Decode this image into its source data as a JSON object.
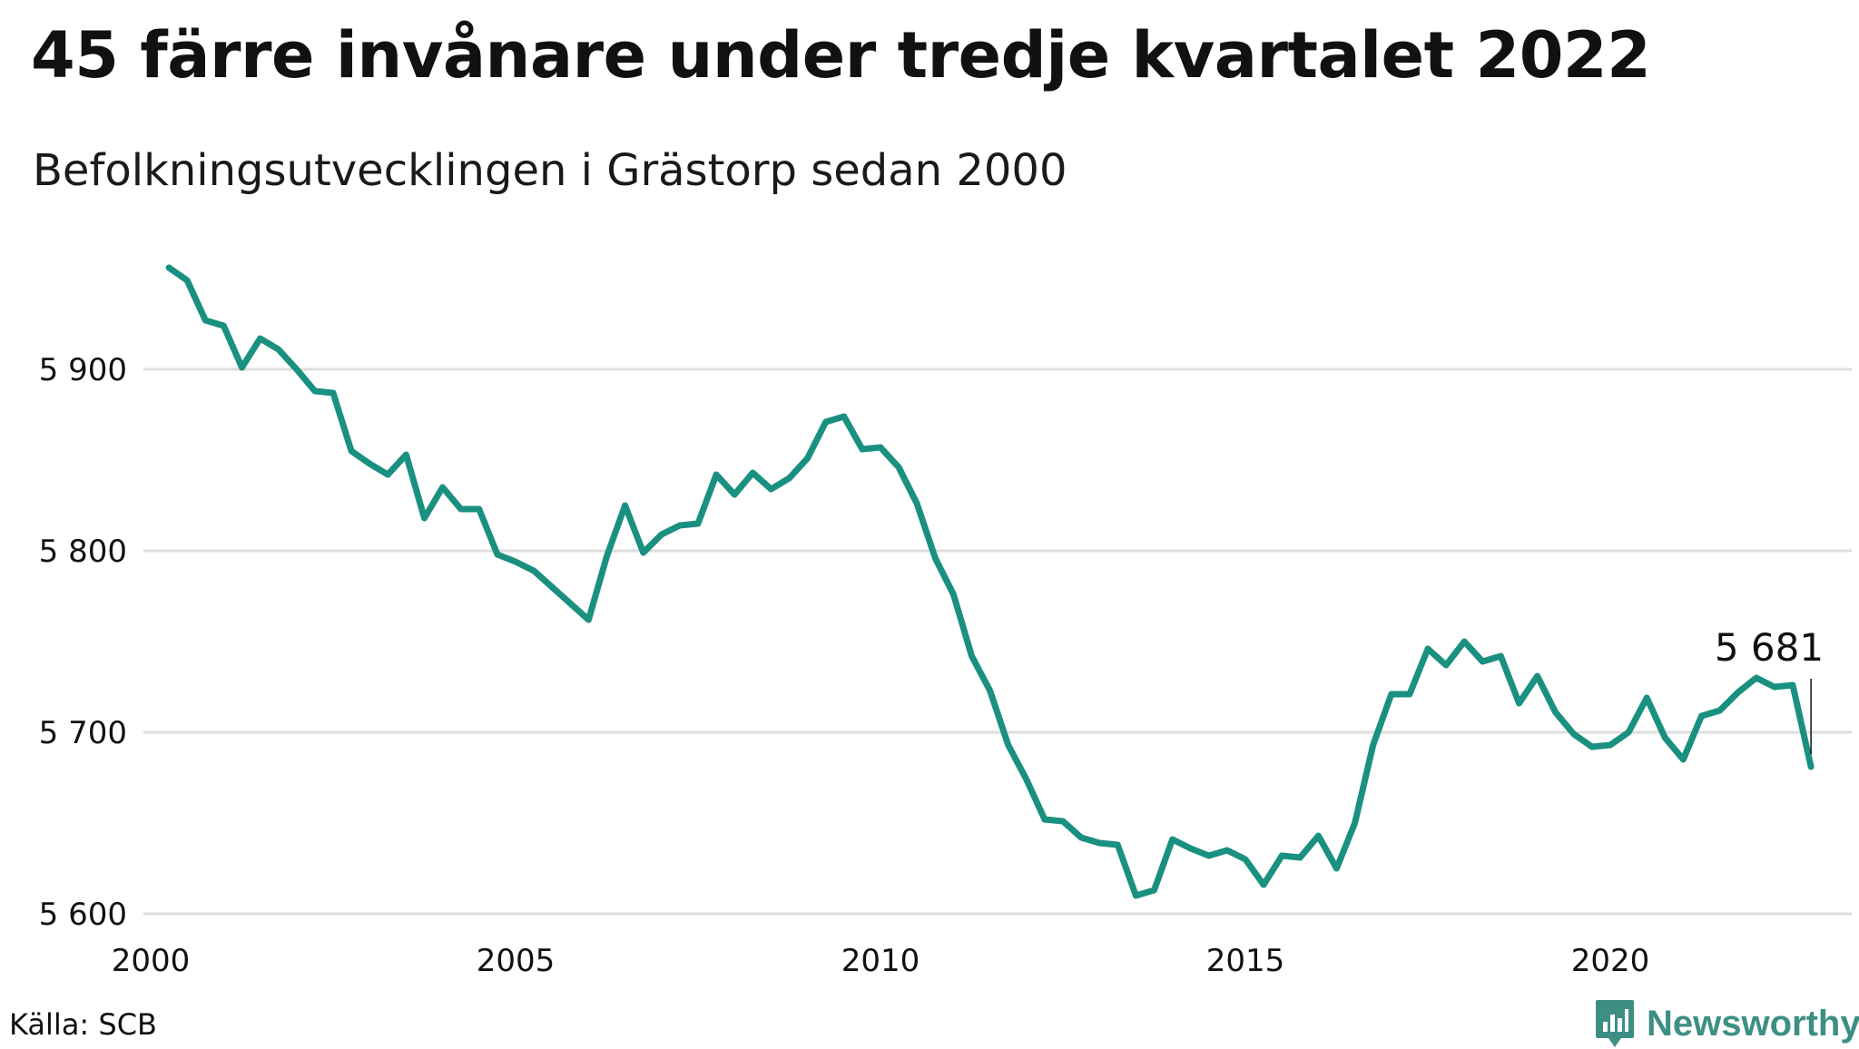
{
  "title": "45 färre invånare under tredje kvartalet 2022",
  "subtitle": "Befolkningsutvecklingen i Grästorp sedan 2000",
  "source": "Källa: SCB",
  "brand": {
    "name": "Newsworthy",
    "icon": "newsworthy-logo-icon",
    "color": "#3d8f84"
  },
  "chart_data": {
    "type": "line",
    "title": "45 färre invånare under tredje kvartalet 2022",
    "subtitle": "Befolkningsutvecklingen i Grästorp sedan 2000",
    "xlabel": "",
    "ylabel": "",
    "xlim": [
      2000,
      2023.5
    ],
    "ylim": [
      5600,
      5960
    ],
    "x_ticks": [
      {
        "value": 2000,
        "label": "2000"
      },
      {
        "value": 2005,
        "label": "2005"
      },
      {
        "value": 2010,
        "label": "2010"
      },
      {
        "value": 2015,
        "label": "2015"
      },
      {
        "value": 2020,
        "label": "2020"
      }
    ],
    "y_ticks": [
      {
        "value": 5600,
        "label": "5 600"
      },
      {
        "value": 5700,
        "label": "5 700"
      },
      {
        "value": 5800,
        "label": "5 800"
      },
      {
        "value": 5900,
        "label": "5 900"
      }
    ],
    "grid": true,
    "line_color": "#1a9080",
    "annotation": {
      "x": 2022.75,
      "y": 5681,
      "label": "5 681"
    },
    "series": [
      {
        "values": [
          {
            "x": 2000.25,
            "y": 5956
          },
          {
            "x": 2000.5,
            "y": 5949
          },
          {
            "x": 2000.75,
            "y": 5927
          },
          {
            "x": 2001.0,
            "y": 5924
          },
          {
            "x": 2001.25,
            "y": 5901
          },
          {
            "x": 2001.5,
            "y": 5917
          },
          {
            "x": 2001.75,
            "y": 5911
          },
          {
            "x": 2002.0,
            "y": 5900
          },
          {
            "x": 2002.25,
            "y": 5888
          },
          {
            "x": 2002.5,
            "y": 5887
          },
          {
            "x": 2002.75,
            "y": 5855
          },
          {
            "x": 2003.0,
            "y": 5848
          },
          {
            "x": 2003.25,
            "y": 5842
          },
          {
            "x": 2003.5,
            "y": 5853
          },
          {
            "x": 2003.75,
            "y": 5818
          },
          {
            "x": 2004.0,
            "y": 5835
          },
          {
            "x": 2004.25,
            "y": 5823
          },
          {
            "x": 2004.5,
            "y": 5823
          },
          {
            "x": 2004.75,
            "y": 5798
          },
          {
            "x": 2005.0,
            "y": 5794
          },
          {
            "x": 2005.25,
            "y": 5789
          },
          {
            "x": 2005.5,
            "y": 5780
          },
          {
            "x": 2005.75,
            "y": 5771
          },
          {
            "x": 2006.0,
            "y": 5762
          },
          {
            "x": 2006.25,
            "y": 5797
          },
          {
            "x": 2006.5,
            "y": 5825
          },
          {
            "x": 2006.75,
            "y": 5799
          },
          {
            "x": 2007.0,
            "y": 5809
          },
          {
            "x": 2007.25,
            "y": 5814
          },
          {
            "x": 2007.5,
            "y": 5815
          },
          {
            "x": 2007.75,
            "y": 5842
          },
          {
            "x": 2008.0,
            "y": 5831
          },
          {
            "x": 2008.25,
            "y": 5843
          },
          {
            "x": 2008.5,
            "y": 5834
          },
          {
            "x": 2008.75,
            "y": 5840
          },
          {
            "x": 2009.0,
            "y": 5851
          },
          {
            "x": 2009.25,
            "y": 5871
          },
          {
            "x": 2009.5,
            "y": 5874
          },
          {
            "x": 2009.75,
            "y": 5856
          },
          {
            "x": 2010.0,
            "y": 5857
          },
          {
            "x": 2010.25,
            "y": 5846
          },
          {
            "x": 2010.5,
            "y": 5826
          },
          {
            "x": 2010.75,
            "y": 5796
          },
          {
            "x": 2011.0,
            "y": 5776
          },
          {
            "x": 2011.25,
            "y": 5742
          },
          {
            "x": 2011.5,
            "y": 5723
          },
          {
            "x": 2011.75,
            "y": 5693
          },
          {
            "x": 2012.0,
            "y": 5674
          },
          {
            "x": 2012.25,
            "y": 5652
          },
          {
            "x": 2012.5,
            "y": 5651
          },
          {
            "x": 2012.75,
            "y": 5642
          },
          {
            "x": 2013.0,
            "y": 5639
          },
          {
            "x": 2013.25,
            "y": 5638
          },
          {
            "x": 2013.5,
            "y": 5610
          },
          {
            "x": 2013.75,
            "y": 5613
          },
          {
            "x": 2014.0,
            "y": 5641
          },
          {
            "x": 2014.25,
            "y": 5636
          },
          {
            "x": 2014.5,
            "y": 5632
          },
          {
            "x": 2014.75,
            "y": 5635
          },
          {
            "x": 2015.0,
            "y": 5630
          },
          {
            "x": 2015.25,
            "y": 5616
          },
          {
            "x": 2015.5,
            "y": 5632
          },
          {
            "x": 2015.75,
            "y": 5631
          },
          {
            "x": 2016.0,
            "y": 5643
          },
          {
            "x": 2016.25,
            "y": 5625
          },
          {
            "x": 2016.5,
            "y": 5650
          },
          {
            "x": 2016.75,
            "y": 5693
          },
          {
            "x": 2017.0,
            "y": 5721
          },
          {
            "x": 2017.25,
            "y": 5721
          },
          {
            "x": 2017.5,
            "y": 5746
          },
          {
            "x": 2017.75,
            "y": 5737
          },
          {
            "x": 2018.0,
            "y": 5750
          },
          {
            "x": 2018.25,
            "y": 5739
          },
          {
            "x": 2018.5,
            "y": 5742
          },
          {
            "x": 2018.75,
            "y": 5716
          },
          {
            "x": 2019.0,
            "y": 5731
          },
          {
            "x": 2019.25,
            "y": 5711
          },
          {
            "x": 2019.5,
            "y": 5699
          },
          {
            "x": 2019.75,
            "y": 5692
          },
          {
            "x": 2020.0,
            "y": 5693
          },
          {
            "x": 2020.25,
            "y": 5700
          },
          {
            "x": 2020.5,
            "y": 5719
          },
          {
            "x": 2020.75,
            "y": 5697
          },
          {
            "x": 2021.0,
            "y": 5685
          },
          {
            "x": 2021.25,
            "y": 5709
          },
          {
            "x": 2021.5,
            "y": 5712
          },
          {
            "x": 2021.75,
            "y": 5722
          },
          {
            "x": 2022.0,
            "y": 5730
          },
          {
            "x": 2022.25,
            "y": 5725
          },
          {
            "x": 2022.5,
            "y": 5726
          },
          {
            "x": 2022.75,
            "y": 5681
          }
        ]
      }
    ]
  }
}
